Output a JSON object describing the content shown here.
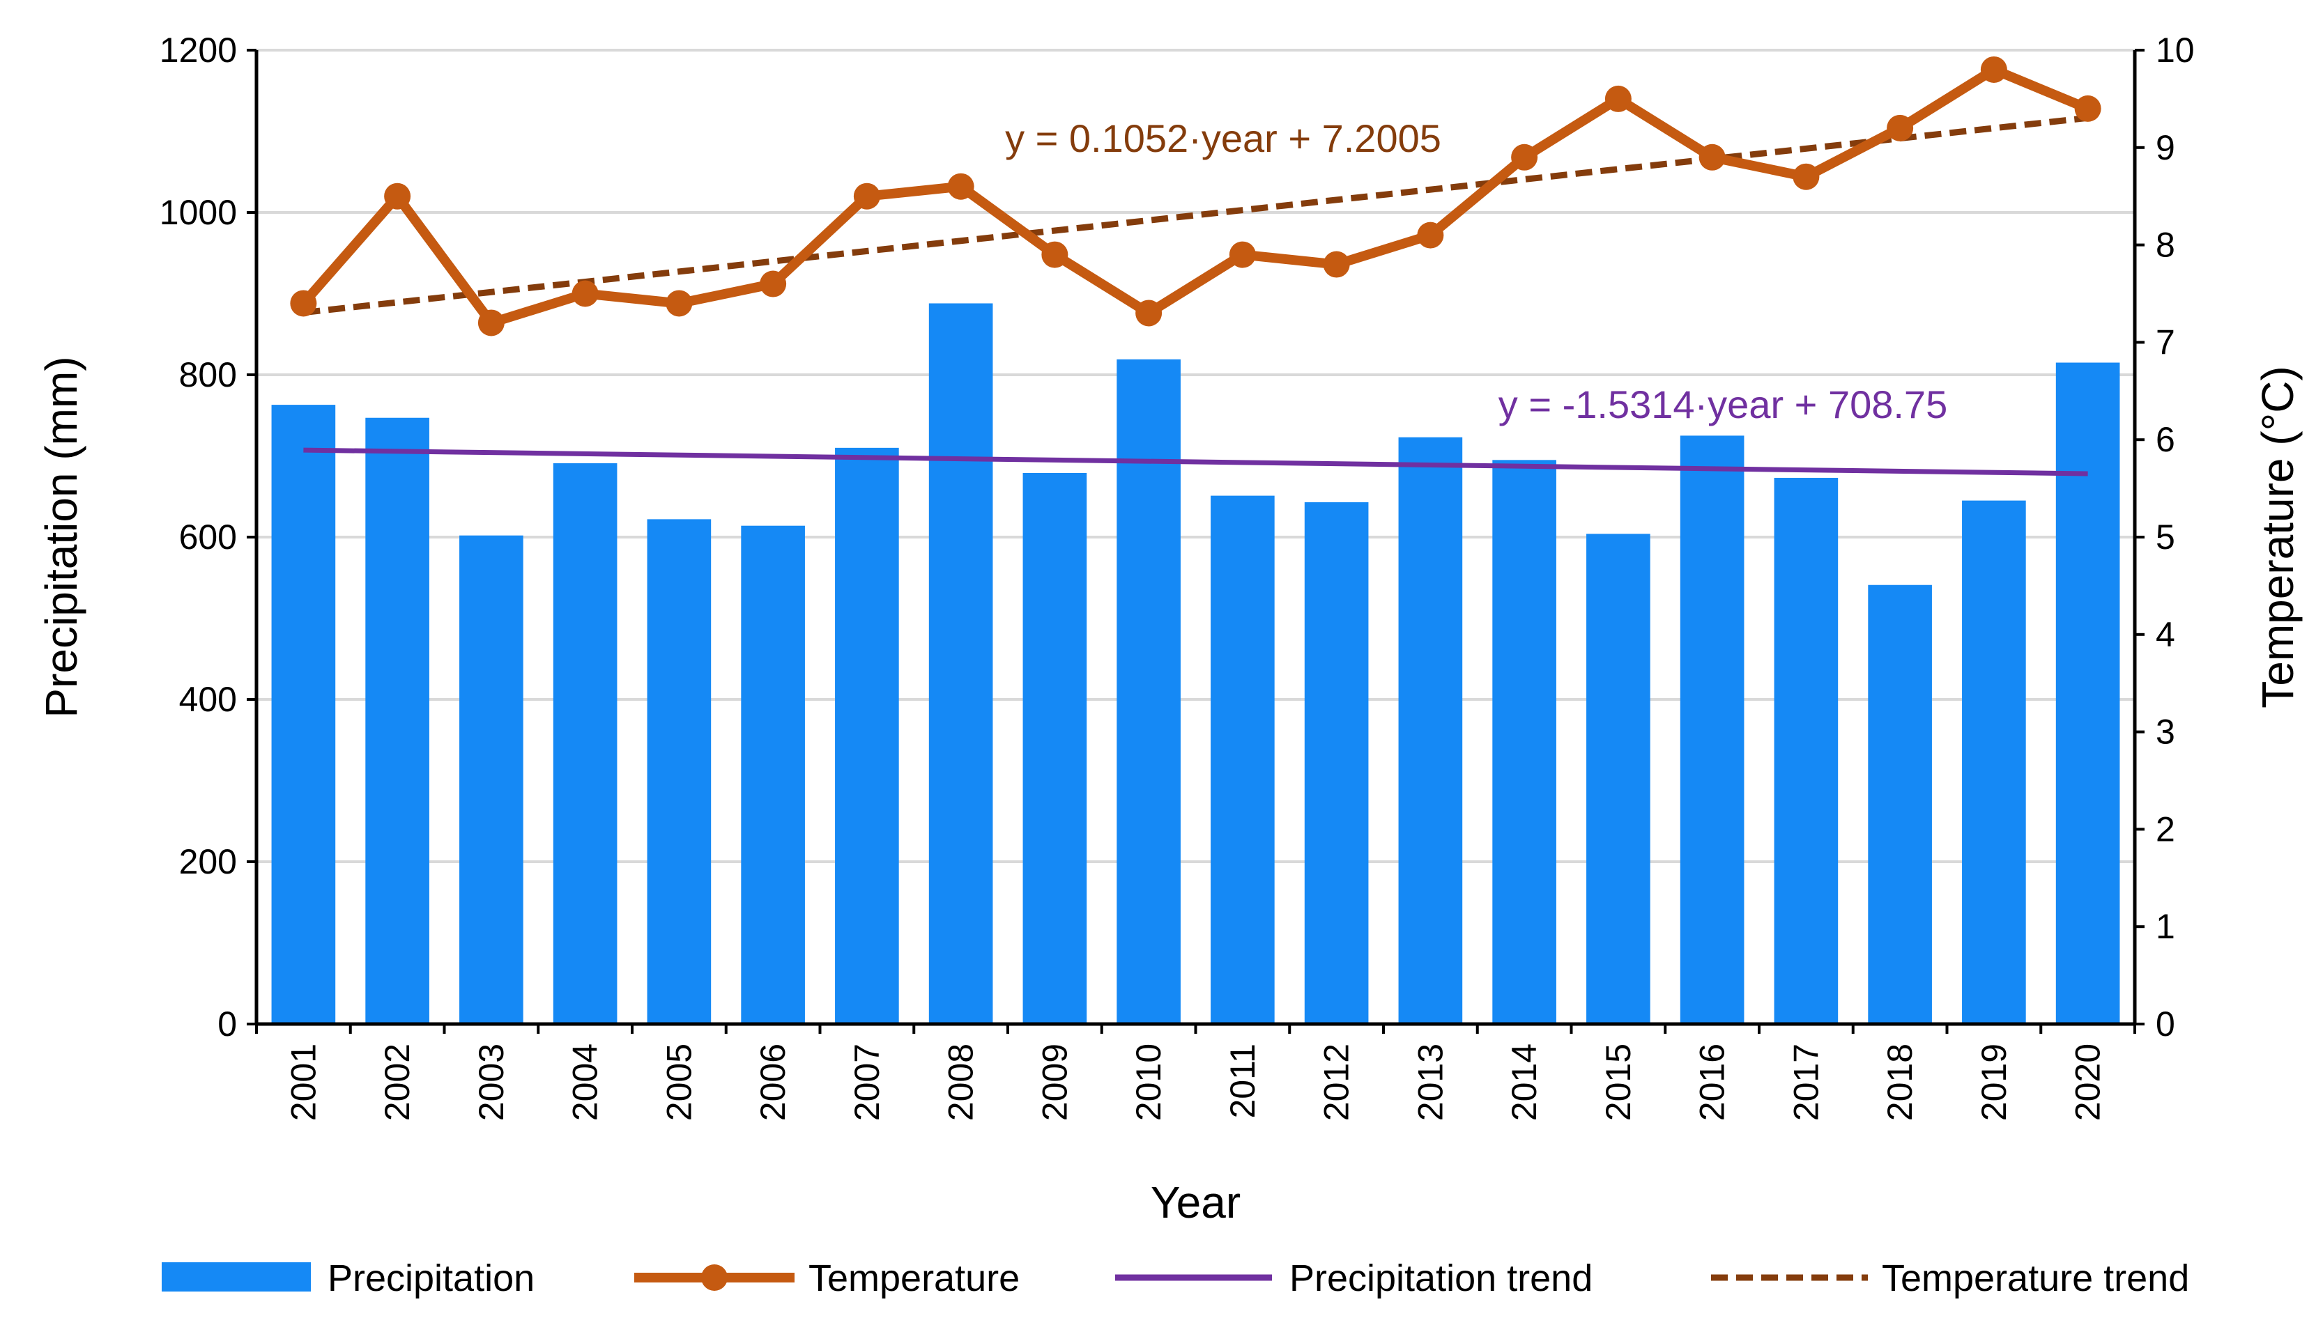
{
  "chart_data": {
    "type": "bar",
    "title": "",
    "xlabel": "Year",
    "ylabel": "Precipitation (mm)",
    "y2label": "Temperature (°C)",
    "categories": [
      "2001",
      "2002",
      "2003",
      "2004",
      "2005",
      "2006",
      "2007",
      "2008",
      "2009",
      "2010",
      "2011",
      "2012",
      "2013",
      "2014",
      "2015",
      "2016",
      "2017",
      "2018",
      "2019",
      "2020"
    ],
    "ylim": [
      0,
      1200
    ],
    "yticks": [
      "0",
      "200",
      "400",
      "600",
      "800",
      "1000",
      "1200"
    ],
    "y2lim": [
      0,
      10
    ],
    "y2ticks": [
      "0",
      "1",
      "2",
      "3",
      "4",
      "5",
      "6",
      "7",
      "8",
      "9",
      "10"
    ],
    "grid": true,
    "legend_position": "bottom",
    "series": [
      {
        "name": "Precipitation",
        "kind": "bar",
        "axis": "left",
        "color": "#1589f5",
        "values": [
          763,
          747,
          602,
          691,
          622,
          614,
          710,
          888,
          679,
          819,
          651,
          643,
          723,
          695,
          604,
          725,
          673,
          541,
          645,
          815
        ]
      },
      {
        "name": "Temperature",
        "kind": "line-markers",
        "axis": "right",
        "color": "#c55a11",
        "values": [
          7.4,
          8.5,
          7.2,
          7.5,
          7.4,
          7.6,
          8.5,
          8.6,
          7.9,
          7.3,
          7.9,
          7.8,
          8.1,
          8.9,
          9.5,
          8.9,
          8.7,
          9.2,
          9.8,
          9.4
        ]
      },
      {
        "name": "Precipitation trend",
        "kind": "line",
        "axis": "left",
        "color": "#7030a0",
        "slope": -1.5314,
        "intercept": 708.75
      },
      {
        "name": "Temperature trend",
        "kind": "dashed-line",
        "axis": "right",
        "color": "#843c0c",
        "slope": 0.1052,
        "intercept": 7.2005
      }
    ],
    "annotations": [
      {
        "series": "Temperature trend",
        "text": "y = 0.1052·year + 7.2005",
        "color": "#843c0c"
      },
      {
        "series": "Precipitation trend",
        "text": "y = -1.5314·year + 708.75",
        "color": "#7030a0"
      }
    ]
  }
}
